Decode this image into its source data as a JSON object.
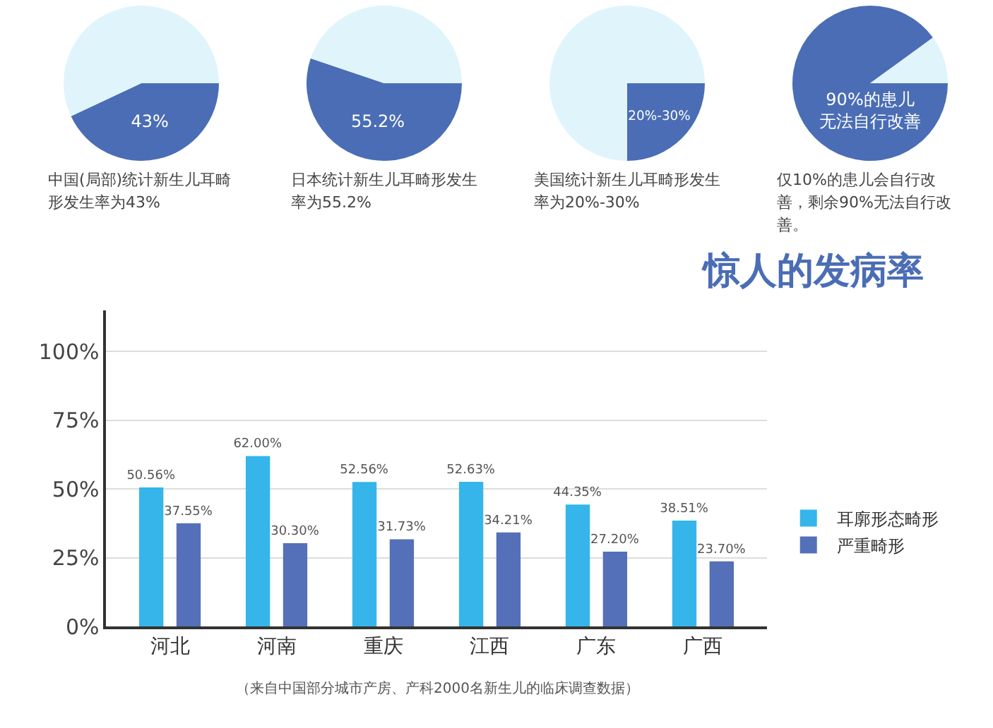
{
  "chart_data": [
    {
      "type": "pie",
      "categories": [
        "43%",
        null
      ],
      "values": [
        43,
        57
      ],
      "colors": [
        "#4a6db5",
        "#e0f4fb"
      ],
      "annotations": [
        "中国(局部)统计新生儿耳畸形发生率为43%"
      ]
    },
    {
      "type": "pie",
      "categories": [
        "55.2%",
        null
      ],
      "values": [
        55.2,
        44.8
      ],
      "colors": [
        "#4a6db5",
        "#e0f4fb"
      ],
      "annotations": [
        "日本统计新生儿耳畸形发生率为55.2%"
      ]
    },
    {
      "type": "pie",
      "categories": [
        "20%-30%",
        null
      ],
      "values": [
        25,
        75
      ],
      "colors": [
        "#4a6db5",
        "#e0f4fb"
      ],
      "annotations": [
        "美国统计新生儿耳畸形发生率为20%-30%"
      ]
    },
    {
      "type": "pie",
      "categories": [
        "90%的患儿无法自行改善",
        null
      ],
      "values": [
        90,
        10
      ],
      "colors": [
        "#4a6db5",
        "#e0f4fb"
      ],
      "annotations": [
        "仅10%的患儿会自行改善，剩余90%无法自行改善。"
      ]
    },
    {
      "type": "bar",
      "title": "惊人的发病率",
      "categories": [
        "河北",
        "河南",
        "重庆",
        "江西",
        "广东",
        "广西"
      ],
      "series": [
        {
          "name": "耳廓形态畸形",
          "color": "#35b5ea",
          "values": [
            50.56,
            62.0,
            52.56,
            52.63,
            44.35,
            38.51
          ],
          "value_labels": [
            "50.56%",
            "62.00%",
            "52.56%",
            "52.63%",
            "44.35%",
            "38.51%"
          ]
        },
        {
          "name": "严重畸形",
          "color": "#5470b8",
          "values": [
            37.55,
            30.3,
            31.73,
            34.21,
            27.2,
            23.7
          ],
          "value_labels": [
            "37.55%",
            "30.30%",
            "31.73%",
            "34.21%",
            "27.20%",
            "23.70%"
          ]
        }
      ],
      "ylim": [
        0,
        115
      ],
      "yticks": [
        {
          "value": 0,
          "label": "0%"
        },
        {
          "value": 25,
          "label": "25%"
        },
        {
          "value": 50,
          "label": "50%"
        },
        {
          "value": 75,
          "label": "75%"
        },
        {
          "value": 100,
          "label": "100%"
        }
      ],
      "grid": "y",
      "legend": "right",
      "annotations": [
        "（来自中国部分城市产房、产科2000名新生儿的临床调查数据）"
      ]
    }
  ]
}
